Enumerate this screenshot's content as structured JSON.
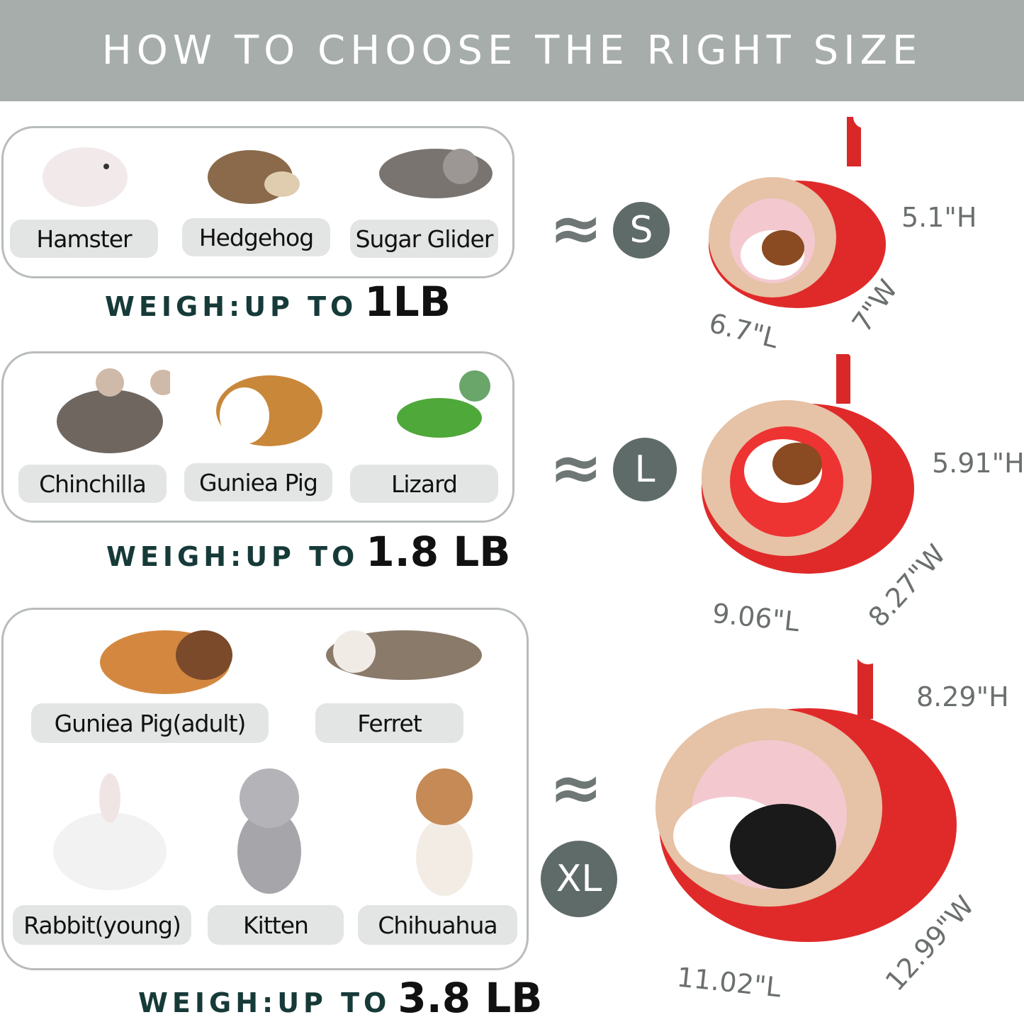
{
  "title": "HOW TO CHOOSE THE RIGHT SIZE",
  "groups": [
    {
      "animals": [
        "Hamster",
        "Hedgehog",
        "Sugar Glider"
      ],
      "weigh_prefix": "WEIGH:UP TO",
      "weigh_value": "1LB",
      "size": "S",
      "dims": {
        "h": "5.1\"H",
        "w": "7\"W",
        "l": "6.7\"L"
      }
    },
    {
      "animals": [
        "Chinchilla",
        "Guniea Pig",
        "Lizard"
      ],
      "weigh_prefix": "WEIGH:UP TO",
      "weigh_value": "1.8 LB",
      "size": "L",
      "dims": {
        "h": "5.91\"H",
        "w": "8.27\"W",
        "l": "9.06\"L"
      }
    },
    {
      "animals": [
        "Guniea Pig(adult)",
        "Ferret",
        "Rabbit(young)",
        "Kitten",
        "Chihuahua"
      ],
      "weigh_prefix": "WEIGH:UP TO",
      "weigh_value": "3.8 LB",
      "size": "XL",
      "dims": {
        "h": "8.29\"H",
        "w": "12.99\"W",
        "l": "11.02\"L"
      }
    }
  ],
  "approx_symbol": "≈",
  "colors": {
    "header": "#a6adab",
    "badge": "#5f6b69",
    "label_bg": "#e3e4e4",
    "bed_red": "#e02a2a",
    "bed_fur": "#e6c2a6"
  }
}
